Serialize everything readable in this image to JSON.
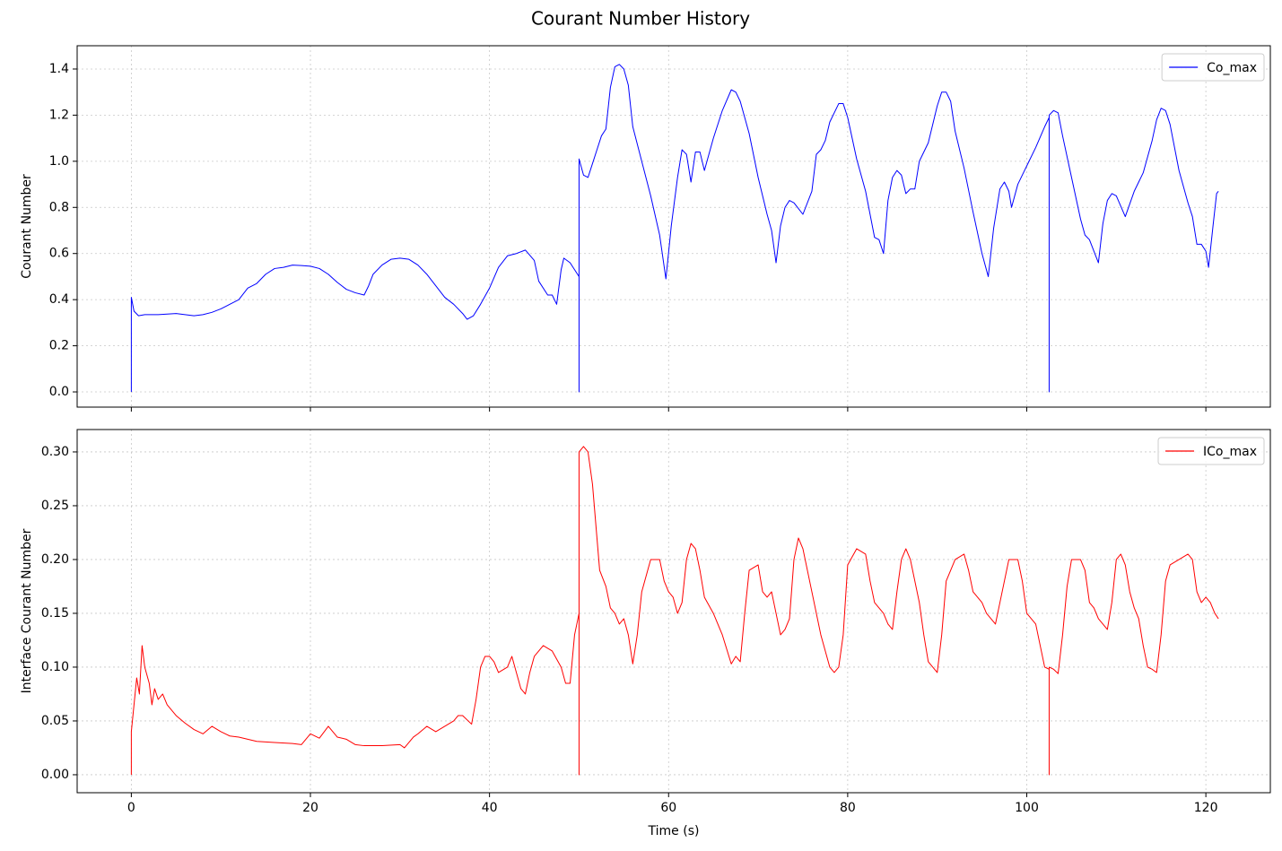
{
  "title": "Courant Number History",
  "chart_data": [
    {
      "type": "line",
      "y_label": "Courant Number",
      "show_xtick_labels": false,
      "grid": true,
      "legend": "upper right",
      "xlim": [
        -6.05,
        127.2
      ],
      "xticks": [
        0,
        20,
        40,
        60,
        80,
        100,
        120
      ],
      "ylim": [
        -0.066,
        1.501
      ],
      "yticks": [
        {
          "value": 0,
          "label": "0.0"
        },
        0.2,
        0.4,
        0.6,
        0.8,
        {
          "value": 1,
          "label": "1.0"
        },
        1.2,
        1.4
      ],
      "x": [
        0,
        0,
        0.3,
        0.8,
        1.5,
        3,
        5,
        6,
        7,
        8,
        9,
        10,
        11,
        12,
        13,
        14,
        15,
        16,
        17,
        18,
        19,
        20,
        21,
        22,
        23,
        24,
        25,
        26,
        26.5,
        27,
        28,
        29,
        30,
        31,
        32,
        33,
        34,
        35,
        36,
        37,
        37.5,
        38.2,
        39,
        40,
        41,
        42,
        43,
        44,
        45,
        45.5,
        46.5,
        47,
        47.5,
        48,
        48.3,
        49,
        49.5,
        50,
        50,
        50,
        50.5,
        51,
        51.5,
        52,
        52.5,
        53,
        53.5,
        54,
        54.5,
        55,
        55.5,
        56,
        57,
        58,
        59,
        59.7,
        60.3,
        61,
        61.5,
        62,
        62.5,
        63,
        63.5,
        64,
        64.5,
        65,
        66,
        67,
        67.5,
        68,
        69,
        70,
        71,
        71.5,
        72,
        72.5,
        73,
        73.5,
        74,
        75,
        76,
        76.5,
        77,
        77.5,
        78,
        79,
        79.5,
        80,
        81,
        82,
        83,
        83.5,
        84,
        84.5,
        85,
        85.5,
        86,
        86.5,
        87,
        87.5,
        88,
        89,
        90,
        90.5,
        91,
        91.5,
        92,
        93,
        94,
        95,
        95.7,
        96.3,
        97,
        97.5,
        98,
        98.3,
        99,
        100,
        101,
        102,
        102.5,
        102.5,
        102.5,
        103,
        103.5,
        104,
        105,
        106,
        106.5,
        107,
        108,
        108.5,
        109,
        109.5,
        110,
        111,
        112,
        113,
        114,
        114.5,
        115,
        115.5,
        116,
        117,
        118,
        118.5,
        119,
        119.5,
        120,
        120.3,
        120.8,
        121.2,
        121.4
      ],
      "series": [
        {
          "name": "Co_max",
          "color": "#0000ff",
          "values": [
            0,
            0.41,
            0.35,
            0.33,
            0.335,
            0.335,
            0.34,
            0.335,
            0.33,
            0.335,
            0.345,
            0.36,
            0.38,
            0.4,
            0.45,
            0.47,
            0.51,
            0.535,
            0.54,
            0.55,
            0.548,
            0.545,
            0.535,
            0.51,
            0.475,
            0.445,
            0.43,
            0.42,
            0.46,
            0.51,
            0.55,
            0.575,
            0.58,
            0.575,
            0.55,
            0.51,
            0.46,
            0.41,
            0.38,
            0.34,
            0.315,
            0.33,
            0.38,
            0.45,
            0.54,
            0.59,
            0.6,
            0.615,
            0.57,
            0.48,
            0.42,
            0.42,
            0.38,
            0.53,
            0.58,
            0.56,
            0.53,
            0.5,
            0,
            1.01,
            0.94,
            0.93,
            0.99,
            1.05,
            1.11,
            1.14,
            1.32,
            1.41,
            1.42,
            1.4,
            1.33,
            1.15,
            1.0,
            0.85,
            0.68,
            0.49,
            0.72,
            0.93,
            1.05,
            1.03,
            0.91,
            1.04,
            1.04,
            0.96,
            1.03,
            1.1,
            1.22,
            1.31,
            1.3,
            1.26,
            1.12,
            0.93,
            0.77,
            0.7,
            0.56,
            0.72,
            0.8,
            0.83,
            0.82,
            0.77,
            0.87,
            1.03,
            1.05,
            1.09,
            1.17,
            1.25,
            1.25,
            1.19,
            1.01,
            0.87,
            0.67,
            0.66,
            0.6,
            0.83,
            0.93,
            0.96,
            0.94,
            0.86,
            0.88,
            0.88,
            1.0,
            1.08,
            1.24,
            1.3,
            1.3,
            1.26,
            1.13,
            0.97,
            0.78,
            0.6,
            0.5,
            0.71,
            0.88,
            0.91,
            0.87,
            0.8,
            0.9,
            0.98,
            1.06,
            1.15,
            1.19,
            0,
            1.2,
            1.22,
            1.21,
            1.11,
            0.93,
            0.75,
            0.68,
            0.66,
            0.56,
            0.73,
            0.83,
            0.86,
            0.85,
            0.76,
            0.87,
            0.95,
            1.09,
            1.18,
            1.23,
            1.22,
            1.16,
            0.96,
            0.82,
            0.76,
            0.64,
            0.64,
            0.61,
            0.54,
            0.72,
            0.86,
            0.87
          ]
        }
      ]
    },
    {
      "type": "line",
      "y_label": "Interface Courant Number",
      "x_label": "Time (s)",
      "show_xtick_labels": true,
      "grid": true,
      "legend": "upper right",
      "xlim": [
        -6.05,
        127.2
      ],
      "xticks": [
        0,
        20,
        40,
        60,
        80,
        100,
        120
      ],
      "ylim": [
        -0.0167,
        0.3208
      ],
      "yticks": [
        {
          "value": 0,
          "label": "0.00"
        },
        0.05,
        {
          "value": 0.1,
          "label": "0.10"
        },
        0.15,
        {
          "value": 0.2,
          "label": "0.20"
        },
        0.25,
        {
          "value": 0.3,
          "label": "0.30"
        }
      ],
      "x": [
        0,
        0,
        0.3,
        0.6,
        0.9,
        1.2,
        1.5,
        2,
        2.3,
        2.6,
        3,
        3.5,
        4,
        5,
        6,
        7,
        8,
        9,
        10,
        11,
        12,
        13,
        14,
        16,
        18,
        19,
        19.5,
        20,
        21,
        22,
        23,
        24,
        25,
        26,
        28,
        30,
        30.5,
        31,
        31.5,
        32,
        33,
        34,
        35,
        36,
        36.5,
        37,
        38,
        38.5,
        39,
        39.5,
        40,
        40.5,
        41,
        42,
        42.5,
        43,
        43.5,
        44,
        44.5,
        45,
        46,
        47,
        48,
        48.5,
        49,
        49.5,
        50,
        50,
        50,
        50.5,
        51,
        51.5,
        52,
        52.3,
        53,
        53.5,
        54,
        54.5,
        55,
        55.5,
        56,
        56.5,
        57,
        58,
        59,
        59.5,
        60,
        60.5,
        61,
        61.5,
        62,
        62.5,
        63,
        63.5,
        64,
        65,
        66,
        67,
        67.5,
        68,
        68.5,
        69,
        70,
        70.5,
        71,
        71.5,
        72,
        72.5,
        73,
        73.5,
        74,
        74.5,
        75,
        75.5,
        76,
        77,
        78,
        78.5,
        79,
        79.5,
        80,
        81,
        82,
        82.5,
        83,
        84,
        84.5,
        85,
        85.5,
        86,
        86.5,
        87,
        88,
        88.5,
        89,
        89.5,
        90,
        90.5,
        91,
        92,
        93,
        93.5,
        94,
        94.5,
        95,
        95.5,
        96,
        96.5,
        97,
        98,
        99,
        99.5,
        100,
        101,
        101.5,
        102,
        102.5,
        102.5,
        102.5,
        103,
        103.5,
        104,
        104.5,
        105,
        106,
        106.5,
        107,
        107.5,
        108,
        108.5,
        109,
        109.5,
        110,
        110.5,
        111,
        111.5,
        112,
        112.5,
        113,
        113.5,
        114,
        114.5,
        115,
        115.5,
        116,
        117,
        118,
        118.5,
        119,
        119.5,
        120,
        120.5,
        121,
        121.4
      ],
      "series": [
        {
          "name": "ICo_max",
          "color": "#ff0000",
          "values": [
            0,
            0.04,
            0.065,
            0.09,
            0.075,
            0.12,
            0.1,
            0.085,
            0.065,
            0.08,
            0.07,
            0.075,
            0.065,
            0.055,
            0.048,
            0.042,
            0.038,
            0.045,
            0.04,
            0.036,
            0.035,
            0.033,
            0.031,
            0.03,
            0.029,
            0.028,
            0.033,
            0.038,
            0.034,
            0.045,
            0.035,
            0.033,
            0.028,
            0.027,
            0.027,
            0.028,
            0.025,
            0.03,
            0.035,
            0.038,
            0.045,
            0.04,
            0.045,
            0.05,
            0.055,
            0.055,
            0.047,
            0.07,
            0.1,
            0.11,
            0.11,
            0.105,
            0.095,
            0.1,
            0.11,
            0.095,
            0.08,
            0.075,
            0.095,
            0.11,
            0.12,
            0.115,
            0.1,
            0.085,
            0.085,
            0.13,
            0.15,
            0,
            0.3,
            0.305,
            0.3,
            0.27,
            0.22,
            0.19,
            0.175,
            0.155,
            0.15,
            0.14,
            0.145,
            0.13,
            0.103,
            0.13,
            0.17,
            0.2,
            0.2,
            0.18,
            0.17,
            0.165,
            0.15,
            0.16,
            0.2,
            0.215,
            0.21,
            0.19,
            0.165,
            0.15,
            0.13,
            0.103,
            0.11,
            0.105,
            0.15,
            0.19,
            0.195,
            0.17,
            0.165,
            0.17,
            0.15,
            0.13,
            0.135,
            0.145,
            0.2,
            0.22,
            0.21,
            0.19,
            0.17,
            0.13,
            0.1,
            0.095,
            0.1,
            0.13,
            0.195,
            0.21,
            0.205,
            0.18,
            0.16,
            0.15,
            0.14,
            0.135,
            0.17,
            0.2,
            0.21,
            0.2,
            0.16,
            0.13,
            0.105,
            0.1,
            0.095,
            0.13,
            0.18,
            0.2,
            0.205,
            0.19,
            0.17,
            0.165,
            0.16,
            0.15,
            0.145,
            0.14,
            0.16,
            0.2,
            0.2,
            0.18,
            0.15,
            0.14,
            0.12,
            0.1,
            0.098,
            0,
            0.1,
            0.098,
            0.094,
            0.13,
            0.175,
            0.2,
            0.2,
            0.19,
            0.16,
            0.155,
            0.145,
            0.14,
            0.135,
            0.16,
            0.2,
            0.205,
            0.195,
            0.17,
            0.155,
            0.145,
            0.12,
            0.1,
            0.098,
            0.095,
            0.13,
            0.18,
            0.195,
            0.2,
            0.205,
            0.2,
            0.17,
            0.16,
            0.165,
            0.16,
            0.15,
            0.145
          ]
        }
      ]
    }
  ]
}
